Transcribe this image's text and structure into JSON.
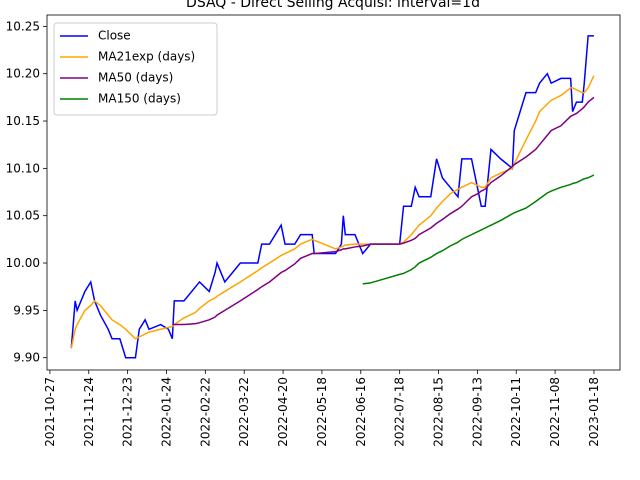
{
  "chart_data": {
    "type": "line",
    "title": "DSAQ - Direct Selling Acquisi: interval=1d",
    "legend": "upper left",
    "grid": false,
    "x": [
      11,
      13,
      14,
      18,
      21,
      23,
      26,
      30,
      32,
      36,
      39,
      44,
      46,
      49,
      51,
      57,
      61,
      63,
      64,
      69,
      75,
      77,
      82,
      85,
      86,
      90,
      94,
      98,
      107,
      109,
      113,
      119,
      121,
      126,
      129,
      135,
      136,
      147,
      150,
      151,
      152,
      157,
      161,
      165,
      170,
      180,
      182,
      186,
      188,
      190,
      196,
      199,
      202,
      206,
      210,
      212,
      217,
      220,
      222,
      224,
      227,
      232,
      238,
      239,
      245,
      250,
      252,
      256,
      258,
      263,
      268,
      269,
      271,
      274,
      275,
      277,
      280
    ],
    "xlim": [
      -1.5,
      293.4
    ],
    "xticks": [
      {
        "value": 0,
        "label": "2021-10-27"
      },
      {
        "value": 20,
        "label": "2021-11-24"
      },
      {
        "value": 40,
        "label": "2021-12-23"
      },
      {
        "value": 60,
        "label": "2022-01-24"
      },
      {
        "value": 80,
        "label": "2022-02-22"
      },
      {
        "value": 100,
        "label": "2022-03-22"
      },
      {
        "value": 120,
        "label": "2022-04-20"
      },
      {
        "value": 140,
        "label": "2022-05-18"
      },
      {
        "value": 160,
        "label": "2022-06-16"
      },
      {
        "value": 180,
        "label": "2022-07-18"
      },
      {
        "value": 200,
        "label": "2022-08-15"
      },
      {
        "value": 220,
        "label": "2022-09-13"
      },
      {
        "value": 240,
        "label": "2022-10-11"
      },
      {
        "value": 260,
        "label": "2022-11-08"
      },
      {
        "value": 280,
        "label": "2023-01-18"
      }
    ],
    "ylim": [
      9.887,
      10.262
    ],
    "yticks": [
      {
        "value": 9.9,
        "label": "9.90"
      },
      9.95,
      {
        "value": 10,
        "label": "10.00"
      },
      10.05,
      {
        "value": 10.1,
        "label": "10.10"
      },
      10.15,
      {
        "value": 10.2,
        "label": "10.20"
      },
      10.25
    ],
    "series": [
      {
        "name": "Close",
        "color": "#0000ff",
        "values": [
          9.91,
          9.96,
          9.95,
          9.97,
          9.98,
          9.96,
          9.945,
          9.93,
          9.92,
          9.92,
          9.9,
          9.9,
          9.93,
          9.94,
          9.93,
          9.935,
          9.93,
          9.92,
          9.96,
          9.96,
          9.975,
          9.98,
          9.97,
          9.99,
          10.0,
          9.98,
          9.99,
          10.0,
          10.0,
          10.02,
          10.02,
          10.04,
          10.02,
          10.02,
          10.03,
          10.03,
          10.01,
          10.01,
          10.02,
          10.05,
          10.03,
          10.03,
          10.01,
          10.02,
          10.02,
          10.02,
          10.06,
          10.06,
          10.08,
          10.07,
          10.07,
          10.11,
          10.09,
          10.08,
          10.07,
          10.11,
          10.11,
          10.08,
          10.06,
          10.06,
          10.12,
          10.11,
          10.1,
          10.14,
          10.18,
          10.18,
          10.19,
          10.2,
          10.19,
          10.195,
          10.195,
          10.16,
          10.17,
          10.17,
          10.19,
          10.24,
          10.24
        ]
      },
      {
        "name": "MA21exp (days)",
        "color": "#ffa500",
        "values": [
          9.91,
          9.93,
          9.935,
          9.95,
          9.955,
          9.96,
          9.955,
          9.945,
          9.94,
          9.935,
          9.93,
          9.92,
          9.922,
          9.925,
          9.927,
          9.93,
          9.932,
          9.933,
          9.935,
          9.942,
          9.948,
          9.952,
          9.96,
          9.963,
          9.965,
          9.97,
          9.975,
          9.98,
          9.992,
          9.995,
          10.0,
          10.008,
          10.01,
          10.015,
          10.02,
          10.025,
          10.024,
          10.015,
          10.017,
          10.018,
          10.019,
          10.02,
          10.02,
          10.02,
          10.02,
          10.02,
          10.022,
          10.03,
          10.035,
          10.04,
          10.05,
          10.058,
          10.065,
          10.073,
          10.078,
          10.08,
          10.085,
          10.082,
          10.08,
          10.08,
          10.09,
          10.095,
          10.1,
          10.105,
          10.13,
          10.15,
          10.16,
          10.168,
          10.172,
          10.177,
          10.185,
          10.185,
          10.183,
          10.18,
          10.18,
          10.185,
          10.198
        ]
      },
      {
        "name": "MA50 (days)",
        "color": "#800080",
        "values": [
          null,
          null,
          null,
          null,
          null,
          null,
          null,
          null,
          null,
          null,
          null,
          null,
          null,
          null,
          null,
          null,
          null,
          9.935,
          9.935,
          9.935,
          9.936,
          9.937,
          9.94,
          9.943,
          9.945,
          9.95,
          9.955,
          9.96,
          9.972,
          9.975,
          9.98,
          9.99,
          9.992,
          9.999,
          10.005,
          10.01,
          10.01,
          10.012,
          10.014,
          10.015,
          10.015,
          10.017,
          10.018,
          10.02,
          10.02,
          10.02,
          10.021,
          10.024,
          10.026,
          10.03,
          10.037,
          10.042,
          10.046,
          10.052,
          10.057,
          10.06,
          10.07,
          10.073,
          10.076,
          10.078,
          10.085,
          10.092,
          10.102,
          10.104,
          10.112,
          10.12,
          10.125,
          10.135,
          10.14,
          10.145,
          10.155,
          10.156,
          10.158,
          10.163,
          10.165,
          10.17,
          10.175
        ]
      },
      {
        "name": "MA150 (days)",
        "color": "#008000",
        "values": [
          null,
          null,
          null,
          null,
          null,
          null,
          null,
          null,
          null,
          null,
          null,
          null,
          null,
          null,
          null,
          null,
          null,
          null,
          null,
          null,
          null,
          null,
          null,
          null,
          null,
          null,
          null,
          null,
          null,
          null,
          null,
          null,
          null,
          null,
          null,
          null,
          null,
          null,
          null,
          null,
          null,
          null,
          9.978,
          9.979,
          9.982,
          9.988,
          9.989,
          9.993,
          9.996,
          10.0,
          10.006,
          10.01,
          10.013,
          10.018,
          10.022,
          10.025,
          10.03,
          10.033,
          10.035,
          10.037,
          10.04,
          10.045,
          10.052,
          10.053,
          10.058,
          10.065,
          10.068,
          10.074,
          10.076,
          10.08,
          10.083,
          10.084,
          10.085,
          10.088,
          10.089,
          10.09,
          10.093
        ]
      }
    ]
  }
}
